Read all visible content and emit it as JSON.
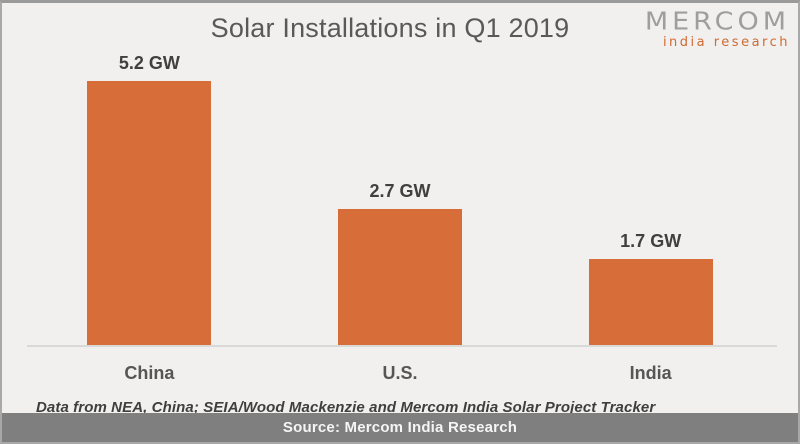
{
  "header": {
    "title": "Solar Installations in Q1 2019",
    "logo": {
      "line1": "MERCOM",
      "line2": "india research"
    }
  },
  "chart_data": {
    "type": "bar",
    "title": "Solar Installations in Q1 2019",
    "categories": [
      "China",
      "U.S.",
      "India"
    ],
    "values": [
      5.2,
      2.7,
      1.7
    ],
    "unit": "GW",
    "data_labels": [
      "5.2 GW",
      "2.7 GW",
      "1.7 GW"
    ],
    "xlabel": "",
    "ylabel": "",
    "ylim": [
      0,
      5.5
    ],
    "grid": false,
    "legend": false,
    "yaxis_visible": false,
    "bar_color": "#d76d38"
  },
  "footnote": "Data from NEA, China; SEIA/Wood Mackenzie and Mercom India Solar Project Tracker",
  "source_bar": {
    "text": "Source: Mercom India Research"
  },
  "colors": {
    "accent_orange": "#d76d38",
    "bar": "#d76d38",
    "logo_gray": "#9e9e9e",
    "source_bg": "#7f7f7f",
    "source_text": "#f5f5f5",
    "title_text": "#595959",
    "label_text": "#404040",
    "axis_line": "#d9d9d8",
    "background": "#f1f0ee"
  }
}
